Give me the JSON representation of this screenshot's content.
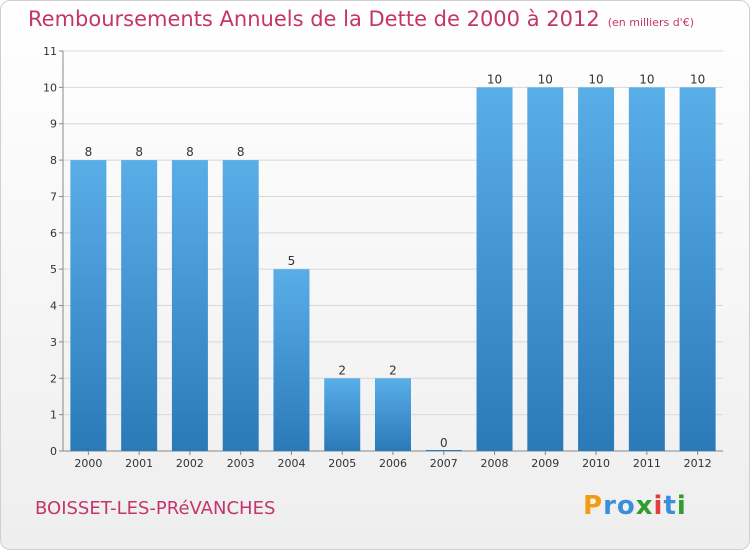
{
  "title": "Remboursements Annuels de la Dette de 2000 à 2012",
  "unit_note": "(en milliers d'€)",
  "commune": "BOISSET-LES-PRéVANCHES",
  "logo": {
    "letters": [
      "P",
      "r",
      "o",
      "x",
      "i",
      "t",
      "i"
    ],
    "colors": [
      "#f39c12",
      "#3b8fd8",
      "#3b8fd8",
      "#2e9c2e",
      "#e23c3c",
      "#3b8fd8",
      "#2e9c2e"
    ]
  },
  "colors": {
    "bar_light": "#5aaee8",
    "bar_dark": "#2a7ab8",
    "axis": "#888888",
    "grid": "#d8d8d8"
  },
  "chart_data": {
    "type": "bar",
    "title": "Remboursements Annuels de la Dette de 2000 à 2012",
    "categories": [
      "2000",
      "2001",
      "2002",
      "2003",
      "2004",
      "2005",
      "2006",
      "2007",
      "2008",
      "2009",
      "2010",
      "2011",
      "2012"
    ],
    "values": [
      8,
      8,
      8,
      8,
      5,
      2,
      2,
      0,
      10,
      10,
      10,
      10,
      10
    ],
    "data_labels": [
      "8",
      "8",
      "8",
      "8",
      "5",
      "2",
      "2",
      "0",
      "10",
      "10",
      "10",
      "10",
      "10"
    ],
    "y_ticks": [
      "0",
      "1",
      "2",
      "3",
      "4",
      "5",
      "6",
      "7",
      "8",
      "9",
      "10",
      "11"
    ],
    "ylim": [
      0,
      11
    ],
    "xlabel": "",
    "ylabel": "",
    "grid": true,
    "legend": "none"
  }
}
